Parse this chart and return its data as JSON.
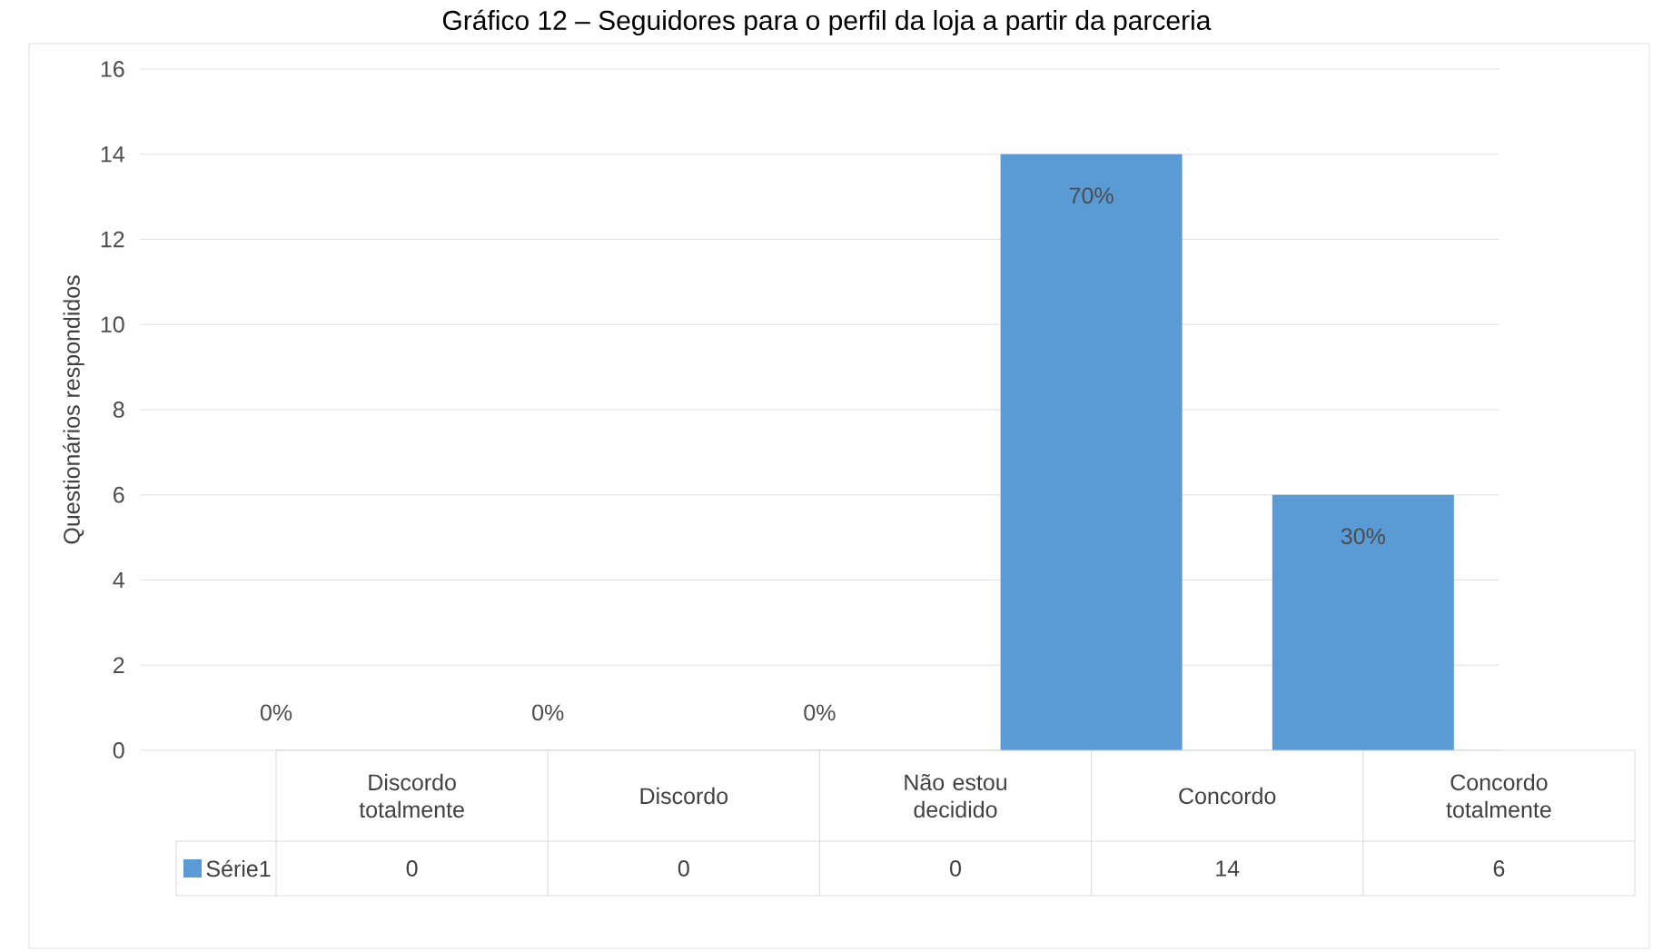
{
  "chart_data": {
    "type": "bar",
    "title": "Gráfico 12 – Seguidores para o perfil da loja a partir da parceria",
    "ylabel": "Questionários respondidos",
    "categories": [
      "Discordo totalmente",
      "Discordo",
      "Não estou decidido",
      "Concordo",
      "Concordo totalmente"
    ],
    "series": [
      {
        "name": "Série1",
        "color": "#5b9bd5",
        "values": [
          0,
          0,
          0,
          14,
          6
        ]
      }
    ],
    "annotations": [
      "0%",
      "0%",
      "0%",
      "70%",
      "30%"
    ],
    "ylim": [
      0,
      16
    ],
    "yticks": [
      0,
      2,
      4,
      6,
      8,
      10,
      12,
      14,
      16
    ],
    "grid": "y",
    "data_labels": true,
    "legend": "bottom"
  }
}
